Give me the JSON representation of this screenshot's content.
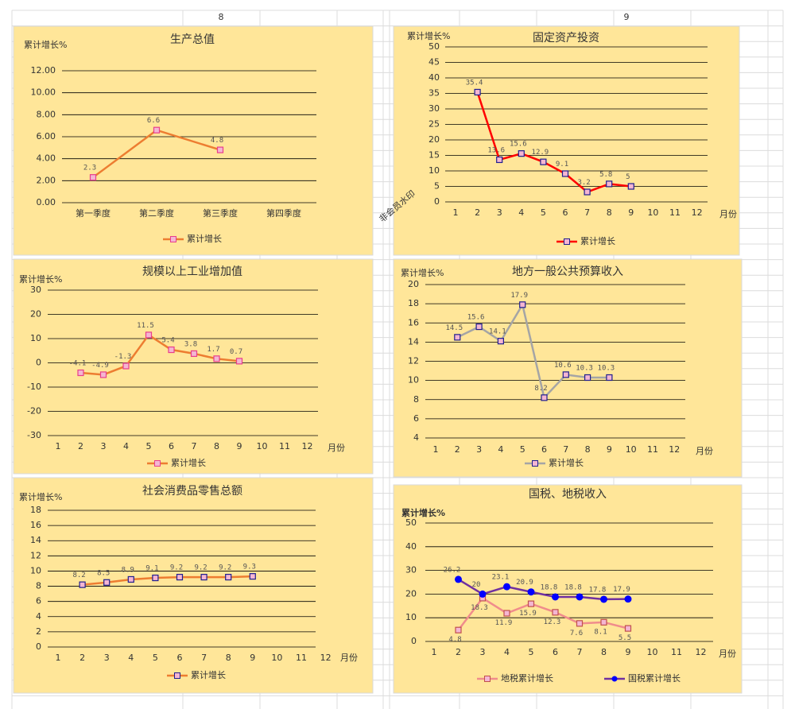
{
  "sheet": {
    "column_labels": [
      "8",
      "9"
    ],
    "watermark": "非会员水印"
  },
  "chart_data": [
    {
      "type": "line",
      "title": "生产总值",
      "y_label": "累计增长%",
      "categories": [
        "第一季度",
        "第二季度",
        "第三季度",
        "第四季度"
      ],
      "series": [
        {
          "name": "累计增长",
          "color": "#ed7d31",
          "marker_color": "#e83e8c",
          "values": [
            2.3,
            6.6,
            4.8,
            null
          ]
        }
      ],
      "ylim": [
        0,
        12
      ],
      "yticks": [
        {
          "value": 0,
          "label": "0.00"
        },
        {
          "value": 2,
          "label": "2.00"
        },
        {
          "value": 4,
          "label": "4.00"
        },
        {
          "value": 6,
          "label": "6.00"
        },
        {
          "value": 8,
          "label": "8.00"
        },
        {
          "value": 10,
          "label": "10.00"
        },
        {
          "value": 12,
          "label": "12.00"
        }
      ],
      "grid": true
    },
    {
      "type": "line",
      "title": "固定资产投资",
      "y_label": "累计增长%",
      "x_label": "月份",
      "categories": [
        "1",
        "2",
        "3",
        "4",
        "5",
        "6",
        "7",
        "8",
        "9",
        "10",
        "11",
        "12"
      ],
      "series": [
        {
          "name": "累计增长",
          "color": "#ff0000",
          "marker_color": "#1f1f8f",
          "values": [
            null,
            35.4,
            13.6,
            15.6,
            12.9,
            9.1,
            3.2,
            5.8,
            5,
            null,
            null,
            null
          ]
        }
      ],
      "ylim": [
        0,
        50
      ],
      "yticks": [
        0,
        5,
        10,
        15,
        20,
        25,
        30,
        35,
        40,
        45,
        50
      ],
      "grid": true
    },
    {
      "type": "line",
      "title": "规模以上工业增加值",
      "y_label": "累计增长%",
      "x_label": "月份",
      "categories": [
        "1",
        "2",
        "3",
        "4",
        "5",
        "6",
        "7",
        "8",
        "9",
        "10",
        "11",
        "12"
      ],
      "series": [
        {
          "name": "累计增长",
          "color": "#ed7d31",
          "marker_color": "#e83e8c",
          "values": [
            null,
            -4.1,
            -4.9,
            -1.3,
            11.5,
            5.4,
            3.8,
            1.7,
            0.7,
            null,
            null,
            null
          ]
        }
      ],
      "ylim": [
        -30,
        30
      ],
      "yticks": [
        -30,
        -20,
        -10,
        0,
        10,
        20,
        30
      ],
      "grid": true
    },
    {
      "type": "line",
      "title": "地方一般公共预算收入",
      "y_label": "累计增长%",
      "x_label": "月份",
      "categories": [
        "1",
        "2",
        "3",
        "4",
        "5",
        "6",
        "7",
        "8",
        "9",
        "10",
        "11",
        "12"
      ],
      "series": [
        {
          "name": "累计增长",
          "color": "#a5a5a5",
          "marker_color": "#1f1f8f",
          "values": [
            null,
            14.5,
            15.6,
            14.1,
            17.9,
            8.2,
            10.6,
            10.3,
            10.3,
            null,
            null,
            null
          ]
        }
      ],
      "ylim": [
        4,
        20
      ],
      "yticks": [
        4,
        6,
        8,
        10,
        12,
        14,
        16,
        18,
        20
      ],
      "grid": true
    },
    {
      "type": "line",
      "title": "社会消费品零售总额",
      "y_label": "累计增长%",
      "x_label": "月份",
      "categories": [
        "1",
        "2",
        "3",
        "4",
        "5",
        "6",
        "7",
        "8",
        "9",
        "10",
        "11",
        "12"
      ],
      "series": [
        {
          "name": "累计增长",
          "color": "#ed7d31",
          "marker_color": "#1f1f8f",
          "values": [
            null,
            8.2,
            8.5,
            8.9,
            9.1,
            9.2,
            9.2,
            9.2,
            9.3,
            null,
            null,
            null
          ]
        }
      ],
      "ylim": [
        0,
        18
      ],
      "yticks": [
        0,
        2,
        4,
        6,
        8,
        10,
        12,
        14,
        16,
        18
      ],
      "grid": true
    },
    {
      "type": "line",
      "title": "国税、地税收入",
      "y_label": "累计增长%",
      "x_label": "月份",
      "categories": [
        "1",
        "2",
        "3",
        "4",
        "5",
        "6",
        "7",
        "8",
        "9",
        "10",
        "11",
        "12"
      ],
      "series": [
        {
          "name": "地税累计增长",
          "color": "#f08c8c",
          "marker_color": "#c0504d",
          "label_color": "#e00000",
          "values": [
            null,
            4.8,
            18.3,
            11.9,
            15.9,
            12.3,
            7.6,
            8.1,
            5.5,
            null,
            null,
            null
          ]
        },
        {
          "name": "国税累计增长",
          "color": "#7030a0",
          "marker_color": "#0000ff",
          "label_color": "#2e75b6",
          "values": [
            null,
            26.2,
            20,
            23.1,
            20.9,
            18.8,
            18.8,
            17.8,
            17.9,
            null,
            null,
            null
          ]
        }
      ],
      "ylim": [
        0,
        50
      ],
      "yticks": [
        0,
        10,
        20,
        30,
        40,
        50
      ],
      "grid": true
    }
  ]
}
